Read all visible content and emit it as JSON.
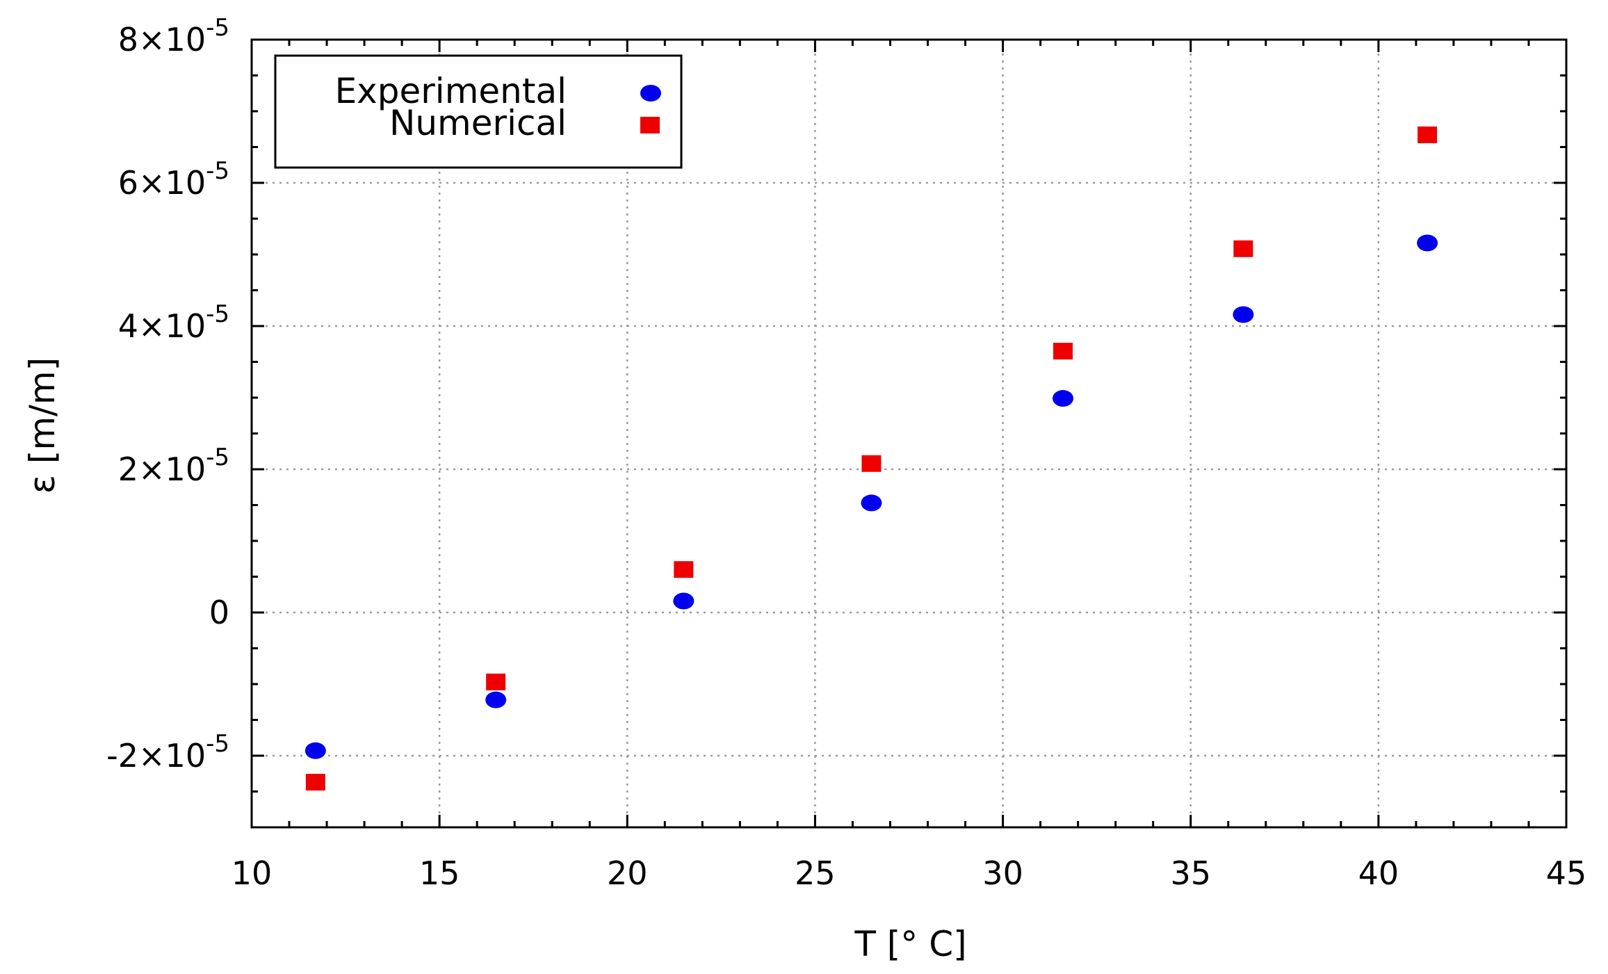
{
  "chart_data": {
    "type": "scatter",
    "title": "",
    "xlabel": "T [° C]",
    "ylabel": "ε [m/m]",
    "xlim": [
      10,
      45
    ],
    "ylim": [
      -3e-05,
      8e-05
    ],
    "x_ticks": [
      10,
      15,
      20,
      25,
      30,
      35,
      40,
      45
    ],
    "x_tick_labels": [
      "10",
      "15",
      "20",
      "25",
      "30",
      "35",
      "40",
      "45"
    ],
    "y_ticks": [
      -2e-05,
      0,
      2e-05,
      4e-05,
      6e-05,
      8e-05
    ],
    "y_tick_labels": [
      {
        "mantissa": "-2×10",
        "exp": "-5"
      },
      {
        "mantissa": "0",
        "exp": ""
      },
      {
        "mantissa": "2×10",
        "exp": "-5"
      },
      {
        "mantissa": "4×10",
        "exp": "-5"
      },
      {
        "mantissa": "6×10",
        "exp": "-5"
      },
      {
        "mantissa": "8×10",
        "exp": "-5"
      }
    ],
    "grid": true,
    "legend_position": "top-left",
    "series": [
      {
        "name": "Experimental",
        "marker": "circle",
        "color": "#0000ee",
        "x": [
          11.7,
          16.5,
          21.5,
          26.5,
          31.6,
          36.4,
          41.3
        ],
        "y": [
          -1.93e-05,
          -1.22e-05,
          1.6e-06,
          1.53e-05,
          2.99e-05,
          4.16e-05,
          5.16e-05
        ]
      },
      {
        "name": "Numerical",
        "marker": "square",
        "color": "#ee0000",
        "x": [
          11.7,
          16.5,
          21.5,
          26.5,
          31.6,
          36.4,
          41.3
        ],
        "y": [
          -2.37e-05,
          -9.7e-06,
          6e-06,
          2.08e-05,
          3.65e-05,
          5.08e-05,
          6.67e-05
        ]
      }
    ]
  }
}
